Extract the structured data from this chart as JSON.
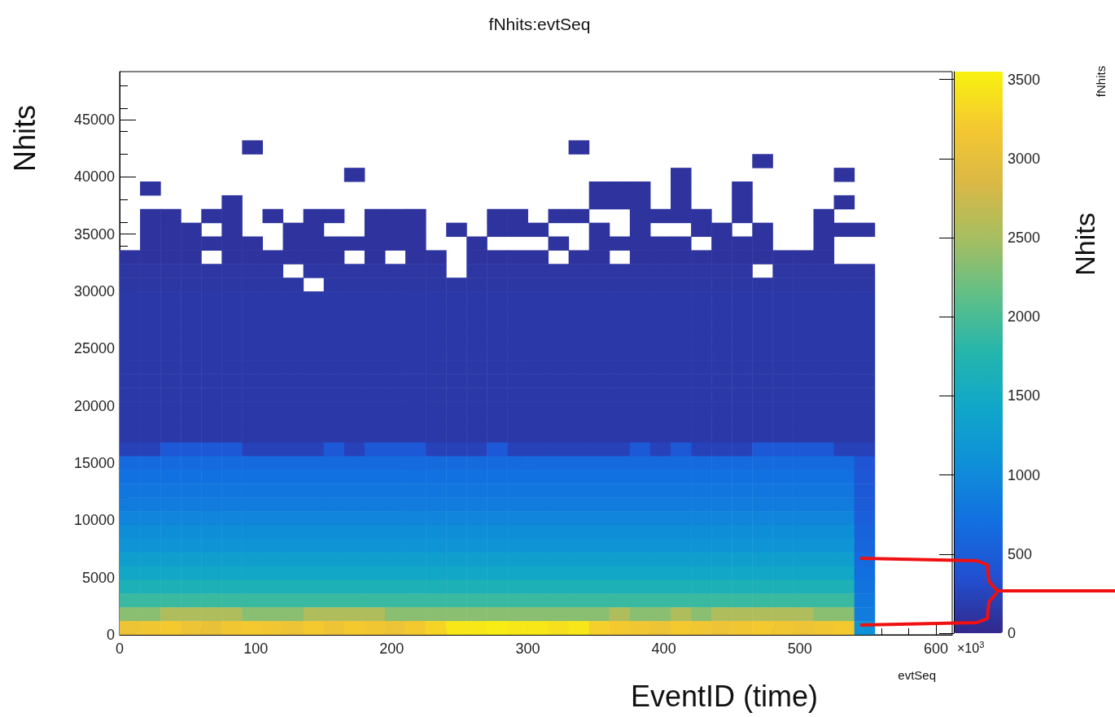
{
  "chart_data": {
    "type": "heatmap",
    "title": "fNhits:evtSeq",
    "xlabel": "evtSeq",
    "ylabel": "Nhits",
    "annotations": [
      "EventID (time)",
      "×10$^{3}$",
      "Nhits",
      "fNhits"
    ],
    "x": [
      7.5,
      22.5,
      37.5,
      52.5,
      67.5,
      82.5,
      97.5,
      112.5,
      127.5,
      142.5,
      157.5,
      172.5,
      187.5,
      202.5,
      217.5,
      232.5,
      247.5,
      262.5,
      277.5,
      292.5,
      307.5,
      322.5,
      337.5,
      352.5,
      367.5,
      382.5,
      397.5,
      412.5,
      427.5,
      442.5,
      457.5,
      472.5,
      487.5,
      502.5,
      517.5,
      532.5,
      547.5
    ],
    "y": [
      42600,
      41400,
      40200,
      39000,
      37800,
      36600,
      35400,
      34200,
      33000,
      31800,
      30600,
      29400,
      28200,
      27000,
      25800,
      24600,
      23400,
      22200,
      21000,
      19800,
      18600,
      17400,
      16200,
      15000,
      13800,
      12600,
      11400,
      10200,
      9000,
      7800,
      6600,
      5400,
      4200,
      3000,
      1800,
      600
    ],
    "xlim": [
      0,
      612
    ],
    "xticks": [
      0,
      100,
      200,
      300,
      400,
      500,
      600
    ],
    "ylim": [
      0,
      49200
    ],
    "yticks": [
      0,
      5000,
      10000,
      15000,
      20000,
      25000,
      30000,
      35000,
      40000,
      45000
    ],
    "clim": [
      0,
      3550
    ],
    "cticks": [
      0,
      500,
      1000,
      1500,
      2000,
      2500,
      3000,
      3500
    ],
    "grid": false,
    "cells": [
      [
        null,
        null,
        null,
        null,
        null,
        null,
        100,
        null,
        null,
        null,
        null,
        null,
        null,
        null,
        null,
        null,
        null,
        null,
        null,
        null,
        null,
        null,
        100,
        null,
        null,
        null,
        null,
        null,
        null,
        null,
        null,
        null,
        null,
        null,
        null,
        null,
        null
      ],
      [
        null,
        null,
        null,
        null,
        null,
        null,
        null,
        null,
        null,
        null,
        null,
        null,
        null,
        null,
        null,
        null,
        null,
        null,
        null,
        null,
        null,
        null,
        null,
        null,
        null,
        null,
        null,
        null,
        null,
        null,
        null,
        100,
        null,
        null,
        null,
        null,
        null
      ],
      [
        null,
        null,
        null,
        null,
        null,
        null,
        null,
        null,
        null,
        null,
        null,
        100,
        null,
        null,
        null,
        null,
        null,
        null,
        null,
        null,
        null,
        null,
        null,
        null,
        null,
        null,
        null,
        100,
        null,
        null,
        null,
        null,
        null,
        null,
        null,
        100,
        null
      ],
      [
        null,
        100,
        null,
        null,
        null,
        null,
        null,
        null,
        null,
        null,
        null,
        null,
        null,
        null,
        null,
        null,
        null,
        null,
        null,
        null,
        null,
        null,
        null,
        100,
        100,
        100,
        null,
        100,
        null,
        null,
        100,
        null,
        null,
        null,
        null,
        null,
        null
      ],
      [
        null,
        null,
        null,
        null,
        null,
        100,
        null,
        null,
        null,
        null,
        null,
        null,
        null,
        null,
        null,
        null,
        null,
        null,
        null,
        null,
        null,
        null,
        null,
        100,
        100,
        100,
        null,
        100,
        null,
        null,
        100,
        null,
        null,
        null,
        null,
        100,
        null
      ],
      [
        null,
        100,
        100,
        null,
        100,
        100,
        null,
        100,
        null,
        100,
        100,
        null,
        100,
        100,
        100,
        null,
        null,
        null,
        100,
        100,
        null,
        100,
        100,
        null,
        null,
        100,
        100,
        100,
        100,
        null,
        100,
        null,
        null,
        null,
        100,
        null,
        null
      ],
      [
        null,
        100,
        100,
        100,
        null,
        100,
        null,
        null,
        100,
        100,
        null,
        null,
        100,
        100,
        100,
        null,
        100,
        null,
        100,
        100,
        100,
        null,
        null,
        100,
        null,
        100,
        null,
        null,
        100,
        100,
        null,
        100,
        null,
        null,
        100,
        100,
        100
      ],
      [
        null,
        100,
        100,
        100,
        100,
        100,
        100,
        null,
        100,
        100,
        100,
        100,
        100,
        100,
        100,
        null,
        null,
        100,
        null,
        null,
        null,
        100,
        null,
        100,
        100,
        100,
        100,
        100,
        null,
        100,
        100,
        100,
        null,
        null,
        100,
        null,
        null
      ],
      [
        100,
        100,
        100,
        100,
        null,
        100,
        100,
        100,
        100,
        100,
        100,
        null,
        100,
        null,
        100,
        100,
        null,
        100,
        100,
        100,
        100,
        null,
        100,
        100,
        null,
        100,
        100,
        100,
        100,
        100,
        100,
        100,
        100,
        100,
        100,
        null,
        null
      ],
      [
        120,
        120,
        120,
        120,
        120,
        120,
        120,
        120,
        null,
        120,
        120,
        120,
        120,
        120,
        120,
        120,
        null,
        120,
        120,
        120,
        120,
        120,
        120,
        120,
        120,
        120,
        120,
        120,
        120,
        120,
        120,
        null,
        120,
        120,
        120,
        120,
        120
      ],
      [
        130,
        130,
        130,
        130,
        130,
        130,
        130,
        130,
        130,
        null,
        130,
        130,
        130,
        130,
        130,
        130,
        130,
        130,
        130,
        130,
        130,
        130,
        130,
        130,
        130,
        130,
        130,
        130,
        130,
        130,
        130,
        130,
        130,
        130,
        130,
        130,
        130
      ],
      [
        150,
        150,
        150,
        150,
        150,
        150,
        150,
        150,
        150,
        150,
        150,
        150,
        150,
        150,
        150,
        150,
        150,
        150,
        150,
        150,
        150,
        150,
        150,
        150,
        150,
        150,
        150,
        150,
        150,
        150,
        150,
        150,
        150,
        150,
        150,
        150,
        150
      ],
      [
        150,
        150,
        150,
        150,
        150,
        150,
        150,
        150,
        150,
        150,
        150,
        150,
        150,
        150,
        150,
        150,
        150,
        150,
        150,
        150,
        150,
        150,
        150,
        150,
        150,
        150,
        150,
        150,
        150,
        150,
        150,
        150,
        150,
        150,
        150,
        150,
        150
      ],
      [
        150,
        150,
        150,
        150,
        150,
        150,
        150,
        150,
        150,
        150,
        150,
        150,
        150,
        150,
        150,
        150,
        150,
        150,
        150,
        150,
        150,
        150,
        150,
        150,
        150,
        150,
        150,
        150,
        150,
        150,
        150,
        150,
        150,
        150,
        150,
        150,
        150
      ],
      [
        150,
        150,
        150,
        150,
        150,
        150,
        150,
        150,
        150,
        150,
        150,
        150,
        150,
        150,
        150,
        150,
        150,
        150,
        150,
        150,
        150,
        150,
        150,
        150,
        150,
        150,
        150,
        150,
        150,
        150,
        150,
        150,
        150,
        150,
        150,
        150,
        150
      ],
      [
        150,
        150,
        150,
        150,
        150,
        150,
        150,
        150,
        150,
        150,
        150,
        150,
        150,
        150,
        150,
        150,
        150,
        150,
        150,
        150,
        150,
        150,
        150,
        150,
        150,
        150,
        150,
        150,
        150,
        150,
        150,
        150,
        150,
        150,
        150,
        150,
        150
      ],
      [
        150,
        150,
        150,
        150,
        150,
        150,
        150,
        150,
        150,
        150,
        150,
        150,
        150,
        150,
        150,
        150,
        150,
        150,
        150,
        150,
        150,
        150,
        150,
        150,
        150,
        150,
        150,
        150,
        150,
        150,
        150,
        150,
        150,
        150,
        150,
        150,
        150
      ],
      [
        150,
        150,
        150,
        150,
        150,
        150,
        150,
        150,
        150,
        150,
        150,
        150,
        150,
        150,
        150,
        150,
        150,
        150,
        150,
        150,
        150,
        150,
        150,
        150,
        150,
        150,
        150,
        150,
        150,
        150,
        150,
        150,
        150,
        150,
        150,
        150,
        150
      ],
      [
        150,
        150,
        150,
        150,
        150,
        150,
        150,
        150,
        150,
        150,
        150,
        150,
        150,
        150,
        150,
        150,
        150,
        150,
        150,
        150,
        150,
        150,
        150,
        150,
        150,
        150,
        150,
        150,
        150,
        150,
        150,
        150,
        150,
        150,
        150,
        150,
        150
      ],
      [
        150,
        150,
        150,
        150,
        150,
        150,
        150,
        150,
        150,
        150,
        150,
        150,
        150,
        150,
        150,
        150,
        150,
        150,
        150,
        150,
        150,
        150,
        150,
        150,
        150,
        150,
        150,
        150,
        150,
        150,
        150,
        150,
        150,
        150,
        150,
        150,
        150
      ],
      [
        150,
        150,
        150,
        150,
        150,
        150,
        150,
        150,
        150,
        150,
        150,
        150,
        150,
        150,
        150,
        150,
        150,
        150,
        150,
        150,
        150,
        150,
        150,
        150,
        150,
        150,
        150,
        150,
        150,
        150,
        150,
        150,
        150,
        150,
        150,
        150,
        150
      ],
      [
        150,
        150,
        150,
        150,
        150,
        150,
        150,
        150,
        150,
        150,
        150,
        150,
        150,
        150,
        150,
        150,
        150,
        150,
        150,
        150,
        150,
        150,
        150,
        150,
        150,
        150,
        150,
        150,
        150,
        150,
        150,
        150,
        150,
        150,
        150,
        150,
        150
      ],
      [
        230,
        230,
        450,
        450,
        450,
        450,
        230,
        230,
        230,
        230,
        450,
        230,
        450,
        450,
        450,
        230,
        230,
        230,
        450,
        230,
        230,
        230,
        230,
        230,
        230,
        450,
        230,
        450,
        230,
        230,
        230,
        450,
        450,
        450,
        450,
        230,
        230
      ],
      [
        650,
        650,
        650,
        650,
        650,
        650,
        650,
        650,
        650,
        650,
        650,
        650,
        650,
        650,
        650,
        650,
        650,
        650,
        650,
        650,
        650,
        650,
        650,
        650,
        650,
        650,
        650,
        650,
        650,
        650,
        650,
        650,
        650,
        650,
        650,
        650,
        400
      ],
      [
        720,
        720,
        720,
        720,
        720,
        720,
        720,
        720,
        720,
        720,
        720,
        720,
        720,
        720,
        720,
        720,
        720,
        720,
        720,
        720,
        720,
        720,
        720,
        720,
        720,
        720,
        720,
        720,
        720,
        720,
        720,
        720,
        720,
        720,
        720,
        720,
        420
      ],
      [
        780,
        780,
        780,
        780,
        780,
        780,
        780,
        780,
        780,
        780,
        780,
        780,
        780,
        780,
        780,
        780,
        780,
        780,
        780,
        780,
        780,
        780,
        780,
        780,
        780,
        780,
        780,
        780,
        780,
        780,
        780,
        780,
        780,
        780,
        780,
        780,
        450
      ],
      [
        850,
        850,
        850,
        850,
        850,
        850,
        850,
        850,
        850,
        850,
        850,
        850,
        850,
        850,
        850,
        850,
        850,
        850,
        850,
        850,
        850,
        850,
        850,
        850,
        850,
        850,
        850,
        850,
        850,
        850,
        850,
        850,
        850,
        850,
        850,
        850,
        480
      ],
      [
        950,
        950,
        950,
        950,
        950,
        950,
        950,
        950,
        950,
        950,
        950,
        950,
        950,
        950,
        950,
        950,
        950,
        950,
        950,
        950,
        950,
        950,
        950,
        950,
        950,
        950,
        950,
        950,
        950,
        950,
        950,
        950,
        950,
        950,
        950,
        950,
        520
      ],
      [
        1050,
        1050,
        1050,
        1050,
        1050,
        1050,
        1050,
        1050,
        1050,
        1050,
        1050,
        1050,
        1050,
        1050,
        1050,
        1050,
        1050,
        1050,
        1050,
        1050,
        1050,
        1050,
        1050,
        1050,
        1050,
        1050,
        1050,
        1050,
        1050,
        1050,
        1050,
        1050,
        1050,
        1050,
        1050,
        1050,
        560
      ],
      [
        1150,
        1150,
        1150,
        1150,
        1150,
        1150,
        1150,
        1150,
        1150,
        1150,
        1150,
        1150,
        1150,
        1150,
        1150,
        1150,
        1150,
        1150,
        1150,
        1150,
        1150,
        1150,
        1150,
        1150,
        1150,
        1150,
        1150,
        1150,
        1150,
        1150,
        1150,
        1150,
        1150,
        1150,
        1150,
        1150,
        600
      ],
      [
        1300,
        1300,
        1300,
        1300,
        1300,
        1300,
        1300,
        1300,
        1300,
        1300,
        1300,
        1300,
        1300,
        1300,
        1300,
        1300,
        1300,
        1300,
        1300,
        1300,
        1300,
        1300,
        1300,
        1300,
        1300,
        1300,
        1300,
        1300,
        1300,
        1300,
        1300,
        1300,
        1300,
        1300,
        1300,
        1300,
        650
      ],
      [
        1450,
        1450,
        1450,
        1450,
        1450,
        1450,
        1450,
        1450,
        1450,
        1450,
        1450,
        1450,
        1450,
        1450,
        1450,
        1450,
        1450,
        1450,
        1450,
        1450,
        1450,
        1450,
        1450,
        1450,
        1450,
        1450,
        1450,
        1450,
        1450,
        1450,
        1450,
        1450,
        1450,
        1450,
        1450,
        1450,
        700
      ],
      [
        1650,
        1650,
        1650,
        1650,
        1650,
        1650,
        1650,
        1650,
        1650,
        1650,
        1650,
        1650,
        1650,
        1650,
        1650,
        1650,
        1650,
        1650,
        1650,
        1650,
        1650,
        1650,
        1650,
        1650,
        1650,
        1650,
        1650,
        1650,
        1650,
        1650,
        1650,
        1650,
        1650,
        1650,
        1650,
        1650,
        750
      ],
      [
        1900,
        1900,
        1900,
        1900,
        1900,
        1900,
        1900,
        1900,
        1900,
        1900,
        1900,
        1900,
        1900,
        1900,
        1900,
        1900,
        1900,
        1900,
        1900,
        1900,
        1900,
        1900,
        1900,
        1900,
        1900,
        1900,
        1900,
        1900,
        1900,
        1900,
        1900,
        1900,
        1900,
        1900,
        1900,
        1900,
        800
      ],
      [
        2350,
        2350,
        2550,
        2550,
        2550,
        2550,
        2350,
        2350,
        2350,
        2550,
        2550,
        2550,
        2550,
        2350,
        2350,
        2350,
        2350,
        2350,
        2350,
        2350,
        2350,
        2350,
        2350,
        2350,
        2550,
        2350,
        2350,
        2550,
        2350,
        2550,
        2550,
        2550,
        2550,
        2550,
        2350,
        2350,
        850
      ],
      [
        3100,
        3150,
        3200,
        3100,
        3050,
        3150,
        3200,
        3150,
        3100,
        3200,
        3100,
        3200,
        3150,
        3100,
        3200,
        3300,
        3450,
        3450,
        3500,
        3450,
        3450,
        3400,
        3450,
        3250,
        3200,
        3150,
        3100,
        3200,
        3150,
        3100,
        3150,
        3200,
        3150,
        3100,
        3150,
        3200,
        1100
      ]
    ]
  }
}
